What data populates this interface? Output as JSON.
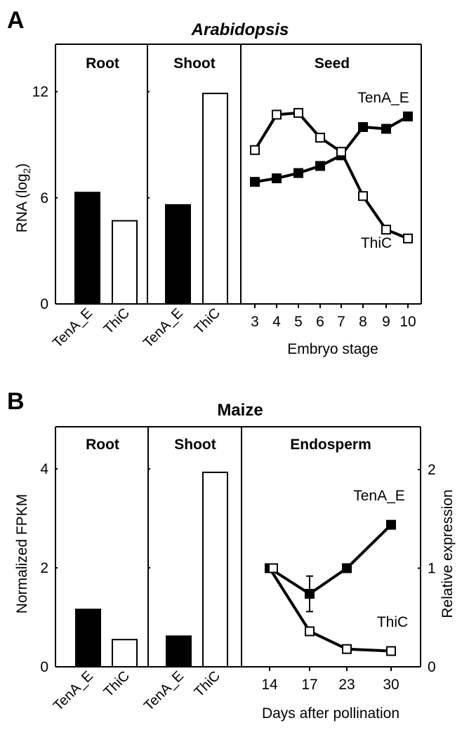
{
  "panels": {
    "A": {
      "letter": "A",
      "title": "Arabidopsis",
      "ylabel": "RNA (log",
      "ylabel_sub": "2",
      "ylabel_close": ")",
      "yticks": [
        0,
        6,
        12
      ],
      "sections": [
        "Root",
        "Shoot",
        "Seed"
      ],
      "bar_labels": [
        "TenA_E",
        "ThiC"
      ],
      "xlabel": "Embryo stage",
      "series_labels": {
        "tenA": "TenA_E",
        "thiC": "ThiC"
      }
    },
    "B": {
      "letter": "B",
      "title": "Maize",
      "ylabel": "Normalized FPKM",
      "ylabel_right": "Relative expression",
      "yticks": [
        0,
        2,
        4
      ],
      "yticks_right": [
        0,
        1,
        2
      ],
      "sections": [
        "Root",
        "Shoot",
        "Endosperm"
      ],
      "bar_labels": [
        "TenA_E",
        "ThiC"
      ],
      "xlabel": "Days after pollination",
      "series_labels": {
        "tenA": "TenA_E",
        "thiC": "ThiC"
      }
    }
  },
  "colors": {
    "tenA_fill": "#000000",
    "thiC_fill": "#ffffff",
    "stroke": "#000000"
  },
  "chart_data": [
    {
      "type": "bar",
      "panel": "A",
      "title": "Arabidopsis - Root / Shoot",
      "ylabel": "RNA (log2)",
      "ylim": [
        0,
        15
      ],
      "categories": [
        "Root",
        "Shoot"
      ],
      "series": [
        {
          "name": "TenA_E",
          "values": [
            6.3,
            5.6
          ]
        },
        {
          "name": "ThiC",
          "values": [
            4.7,
            11.9
          ]
        }
      ]
    },
    {
      "type": "line",
      "panel": "A",
      "title": "Arabidopsis - Seed",
      "xlabel": "Embryo stage",
      "ylabel": "RNA (log2)",
      "ylim": [
        0,
        15
      ],
      "x": [
        3,
        4,
        5,
        6,
        7,
        8,
        9,
        10
      ],
      "series": [
        {
          "name": "TenA_E",
          "marker": "filled-square",
          "values": [
            6.9,
            7.1,
            7.4,
            7.8,
            8.4,
            10.0,
            9.9,
            10.6
          ]
        },
        {
          "name": "ThiC",
          "marker": "open-square",
          "values": [
            8.7,
            10.7,
            10.8,
            9.4,
            8.6,
            6.1,
            4.2,
            3.7
          ]
        }
      ]
    },
    {
      "type": "bar",
      "panel": "B",
      "title": "Maize - Root / Shoot",
      "ylabel": "Normalized FPKM",
      "ylim": [
        0,
        5
      ],
      "categories": [
        "Root",
        "Shoot"
      ],
      "series": [
        {
          "name": "TenA_E",
          "values": [
            1.16,
            0.62
          ]
        },
        {
          "name": "ThiC",
          "values": [
            0.55,
            3.93
          ]
        }
      ]
    },
    {
      "type": "line",
      "panel": "B",
      "title": "Maize - Endosperm",
      "xlabel": "Days after pollination",
      "ylabel": "Relative expression",
      "ylim": [
        0,
        2.5
      ],
      "x": [
        14,
        17,
        23,
        30
      ],
      "series": [
        {
          "name": "TenA_E",
          "marker": "filled-square",
          "values": [
            1.0,
            0.74,
            1.0,
            1.44
          ],
          "error": [
            0,
            0.18,
            0,
            0
          ]
        },
        {
          "name": "ThiC",
          "marker": "open-square",
          "values": [
            1.0,
            0.36,
            0.18,
            0.16
          ]
        }
      ]
    }
  ]
}
